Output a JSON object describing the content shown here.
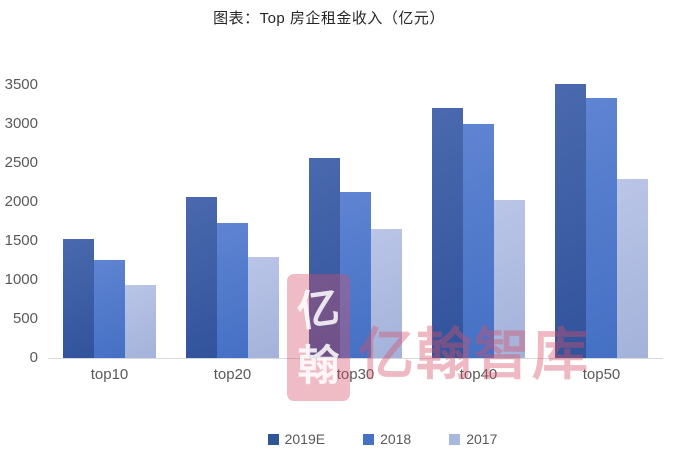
{
  "title": "图表：Top 房企租金收入（亿元）",
  "watermark": {
    "logo_char_top": "亿",
    "logo_char_bottom": "翰",
    "text": "亿翰智库",
    "color": "#d65069"
  },
  "colors": {
    "series_2019e": "#2f5597",
    "series_2018": "#4472c4",
    "series_2017": "#a9b8de",
    "axis_line": "#d9d9d9",
    "axis_text": "#595959",
    "title_text": "#262626"
  },
  "chart_data": {
    "type": "bar",
    "title": "图表：Top 房企租金收入（亿元）",
    "categories": [
      "top10",
      "top20",
      "top30",
      "top40",
      "top50"
    ],
    "series": [
      {
        "name": "2019E",
        "color": "#2f5597",
        "gradient": [
          "#4a69ae",
          "#31539c"
        ],
        "values": [
          1520,
          2070,
          2560,
          3200,
          3510
        ]
      },
      {
        "name": "2018",
        "color": "#4472c4",
        "gradient": [
          "#5f84d2",
          "#4470c4"
        ],
        "values": [
          1260,
          1730,
          2130,
          3000,
          3330
        ]
      },
      {
        "name": "2017",
        "color": "#a9b8de",
        "gradient": [
          "#bac5e7",
          "#a3b2da"
        ],
        "values": [
          930,
          1290,
          1650,
          2030,
          2300
        ]
      }
    ],
    "xlabel": "",
    "ylabel": "",
    "ylim": [
      0,
      3500
    ],
    "yticks": [
      0,
      500,
      1000,
      1500,
      2000,
      2500,
      3000,
      3500
    ],
    "grid": false,
    "legend_position": "bottom"
  }
}
